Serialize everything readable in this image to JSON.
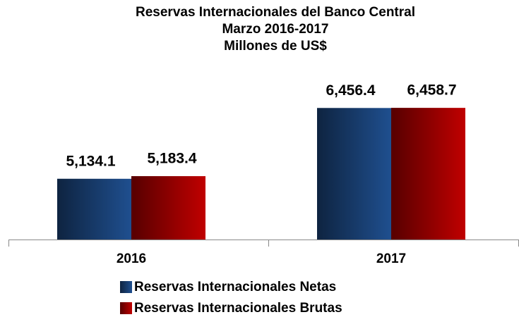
{
  "chart_data": {
    "type": "bar",
    "title": [
      "Reservas Internacionales del Banco Central",
      "Marzo 2016-2017",
      "Millones de US$"
    ],
    "categories": [
      "2016",
      "2017"
    ],
    "series": [
      {
        "name": "Reservas Internacionales Netas",
        "color": "#1f4f8f",
        "values": [
          5134.1,
          6456.4
        ],
        "value_labels": [
          "5,134.1",
          "6,456.4"
        ]
      },
      {
        "name": "Reservas Internacionales Brutas",
        "color": "#c00000",
        "values": [
          5183.4,
          6458.7
        ],
        "value_labels": [
          "5,183.4",
          "6,458.7"
        ]
      }
    ],
    "ylim": [
      4000,
      7000
    ],
    "legend": "bottom"
  }
}
